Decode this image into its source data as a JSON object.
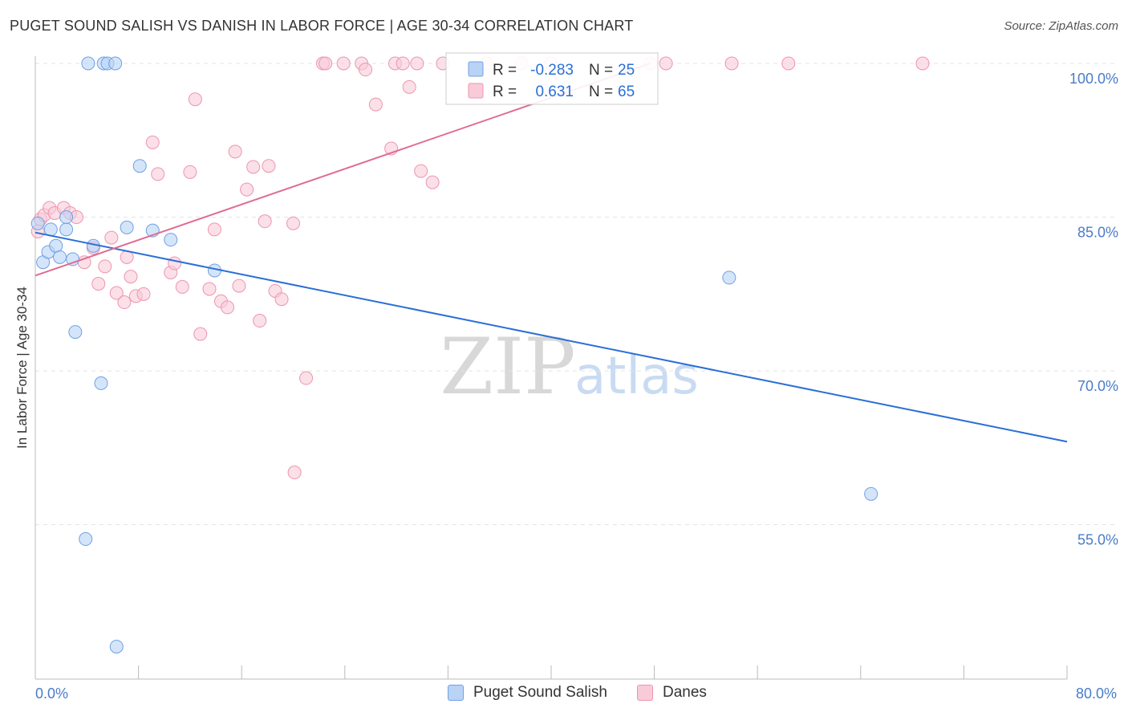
{
  "header": {
    "title": "PUGET SOUND SALISH VS DANISH IN LABOR FORCE | AGE 30-34 CORRELATION CHART",
    "source": "Source: ZipAtlas.com"
  },
  "watermark": {
    "zip": "ZIP",
    "atlas": "atlas"
  },
  "colors": {
    "blue_fill": "#b9d3f5",
    "blue_stroke": "#6ea0e6",
    "blue_line": "#2a6fd6",
    "pink_fill": "#f9cbd9",
    "pink_stroke": "#ee94b0",
    "pink_line": "#e06c93",
    "tick_label": "#4a7cc8"
  },
  "legend": {
    "rows": [
      {
        "r_label": "R =",
        "r_value": "-0.283",
        "n_label": "N =",
        "n_value": "25"
      },
      {
        "r_label": "R =",
        "r_value": "0.631",
        "n_label": "N =",
        "n_value": "65"
      }
    ]
  },
  "chart_data": {
    "type": "scatter",
    "title": "PUGET SOUND SALISH VS DANISH IN LABOR FORCE | AGE 30-34 CORRELATION CHART",
    "xlabel": "",
    "ylabel": "In Labor Force | Age 30-34",
    "xlim": [
      0,
      80
    ],
    "ylim": [
      40,
      102.5
    ],
    "x_tick_labels": [
      "0.0%",
      "80.0%"
    ],
    "y_ticks": [
      55,
      70,
      85,
      100
    ],
    "y_tick_labels": [
      "55.0%",
      "70.0%",
      "85.0%",
      "100.0%"
    ],
    "grid": true,
    "legend_position": "bottom",
    "series": [
      {
        "name": "Puget Sound Salish",
        "r": -0.283,
        "n": 25,
        "trend": {
          "x": [
            0,
            80
          ],
          "y": [
            83.5,
            63.1
          ]
        },
        "points": [
          [
            0.2,
            84.4
          ],
          [
            0.6,
            80.6
          ],
          [
            1.0,
            81.6
          ],
          [
            1.2,
            83.8
          ],
          [
            1.6,
            82.2
          ],
          [
            1.9,
            81.1
          ],
          [
            2.4,
            83.8
          ],
          [
            2.4,
            85.0
          ],
          [
            2.9,
            80.9
          ],
          [
            3.1,
            73.8
          ],
          [
            4.1,
            100.0
          ],
          [
            4.5,
            82.2
          ],
          [
            5.1,
            68.8
          ],
          [
            5.3,
            100.0
          ],
          [
            5.6,
            100.0
          ],
          [
            6.2,
            100.0
          ],
          [
            6.3,
            43.1
          ],
          [
            7.1,
            84.0
          ],
          [
            8.1,
            90.0
          ],
          [
            9.1,
            83.7
          ],
          [
            10.5,
            82.8
          ],
          [
            13.9,
            79.8
          ],
          [
            53.8,
            79.1
          ],
          [
            64.8,
            58.0
          ],
          [
            3.9,
            53.6
          ]
        ]
      },
      {
        "name": "Danes",
        "r": 0.631,
        "n": 65,
        "trend": {
          "x": [
            0,
            47.7
          ],
          "y": [
            79.3,
            100.0
          ]
        },
        "points": [
          [
            0.2,
            83.6
          ],
          [
            0.4,
            84.8
          ],
          [
            0.7,
            85.2
          ],
          [
            1.1,
            85.9
          ],
          [
            1.5,
            85.4
          ],
          [
            2.2,
            85.9
          ],
          [
            2.7,
            85.4
          ],
          [
            3.2,
            85.0
          ],
          [
            3.8,
            80.6
          ],
          [
            4.5,
            82.0
          ],
          [
            4.9,
            78.5
          ],
          [
            5.4,
            80.2
          ],
          [
            5.9,
            83.0
          ],
          [
            6.3,
            77.6
          ],
          [
            6.9,
            76.7
          ],
          [
            7.1,
            81.1
          ],
          [
            7.4,
            79.2
          ],
          [
            7.8,
            77.3
          ],
          [
            8.4,
            77.5
          ],
          [
            9.1,
            92.3
          ],
          [
            9.5,
            89.2
          ],
          [
            10.5,
            79.6
          ],
          [
            10.8,
            80.5
          ],
          [
            11.4,
            78.2
          ],
          [
            12.0,
            89.4
          ],
          [
            12.4,
            96.5
          ],
          [
            12.8,
            73.6
          ],
          [
            13.5,
            78.0
          ],
          [
            13.9,
            83.8
          ],
          [
            14.4,
            76.8
          ],
          [
            14.9,
            76.2
          ],
          [
            15.5,
            91.4
          ],
          [
            15.8,
            78.3
          ],
          [
            16.4,
            87.7
          ],
          [
            16.9,
            89.9
          ],
          [
            17.4,
            74.9
          ],
          [
            17.8,
            84.6
          ],
          [
            18.1,
            90.0
          ],
          [
            18.6,
            77.8
          ],
          [
            19.1,
            77.0
          ],
          [
            20.0,
            84.4
          ],
          [
            20.1,
            60.1
          ],
          [
            21.0,
            69.3
          ],
          [
            22.3,
            100.0
          ],
          [
            22.5,
            100.0
          ],
          [
            23.9,
            100.0
          ],
          [
            25.3,
            100.0
          ],
          [
            25.6,
            99.4
          ],
          [
            26.4,
            96.0
          ],
          [
            27.6,
            91.7
          ],
          [
            27.9,
            100.0
          ],
          [
            28.5,
            100.0
          ],
          [
            29.0,
            97.7
          ],
          [
            29.6,
            100.0
          ],
          [
            29.9,
            89.5
          ],
          [
            30.8,
            88.4
          ],
          [
            31.6,
            100.0
          ],
          [
            37.7,
            100.0
          ],
          [
            40.0,
            100.0
          ],
          [
            47.7,
            100.0
          ],
          [
            48.9,
            100.0
          ],
          [
            54.0,
            100.0
          ],
          [
            58.4,
            100.0
          ],
          [
            68.8,
            100.0
          ],
          [
            35.0,
            100.0
          ]
        ]
      }
    ]
  }
}
